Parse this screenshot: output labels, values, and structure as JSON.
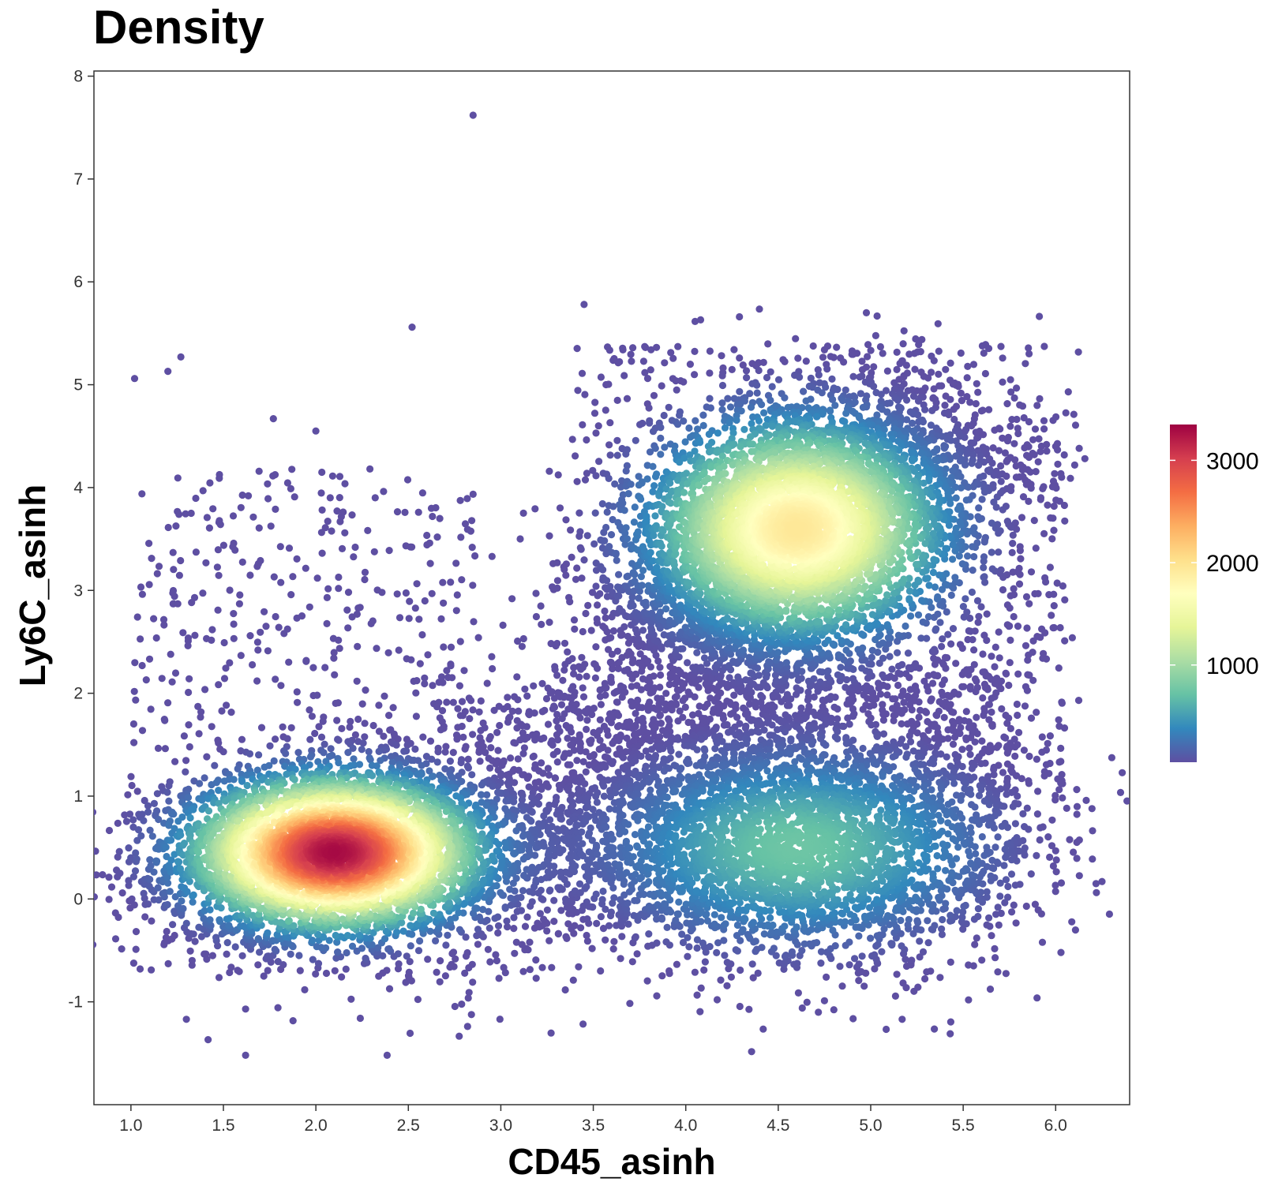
{
  "chart_data": {
    "type": "scatter",
    "title": "Density",
    "xlabel": "CD45_asinh",
    "ylabel": "Ly6C_asinh",
    "xlim": [
      0.8,
      6.4
    ],
    "ylim": [
      -2.0,
      8.05
    ],
    "x_ticks": [
      "1.0",
      "1.5",
      "2.0",
      "2.5",
      "3.0",
      "3.5",
      "4.0",
      "4.5",
      "5.0",
      "5.5",
      "6.0"
    ],
    "y_ticks": [
      "-1",
      "0",
      "1",
      "2",
      "3",
      "4",
      "5",
      "6",
      "7",
      "8"
    ],
    "grid": false,
    "legend": {
      "placement": "right",
      "type": "colorbar",
      "min": 50,
      "max": 3350,
      "ticks": [
        "1000",
        "2000",
        "3000"
      ],
      "palette": [
        "#5e4fa2",
        "#3288bd",
        "#66c2a5",
        "#abdda4",
        "#e6f598",
        "#ffffbf",
        "#fee08b",
        "#fdae61",
        "#f46d43",
        "#d53e4f",
        "#9e0142"
      ]
    },
    "clusters": [
      {
        "center": [
          2.1,
          0.45
        ],
        "sd": [
          0.42,
          0.4
        ],
        "peak_density": 3300
      },
      {
        "center": [
          4.6,
          3.6
        ],
        "sd": [
          0.45,
          0.6
        ],
        "peak_density": 1950
      },
      {
        "center": [
          4.6,
          0.5
        ],
        "sd": [
          0.6,
          0.55
        ],
        "peak_density": 750
      }
    ],
    "outliers": [
      [
        2.85,
        7.62
      ],
      [
        1.02,
        5.06
      ],
      [
        1.2,
        5.13
      ],
      [
        1.27,
        5.27
      ],
      [
        2.52,
        5.56
      ],
      [
        1.62,
        -1.52
      ],
      [
        1.3,
        -1.17
      ],
      [
        2.82,
        -1.24
      ],
      [
        5.43,
        -1.31
      ],
      [
        5.17,
        -1.17
      ],
      [
        4.63,
        -1.06
      ],
      [
        4.75,
        -0.99
      ],
      [
        4.17,
        -0.98
      ],
      [
        3.91,
        -0.7
      ],
      [
        1.11,
        -0.69
      ],
      [
        6.09,
        2.54
      ],
      [
        6.02,
        1.33
      ],
      [
        3.45,
        5.78
      ],
      [
        4.29,
        5.66
      ],
      [
        4.08,
        5.63
      ],
      [
        1.77,
        4.67
      ],
      [
        2.0,
        4.55
      ],
      [
        1.62,
        -1.07
      ],
      [
        2.24,
        -1.16
      ]
    ]
  }
}
